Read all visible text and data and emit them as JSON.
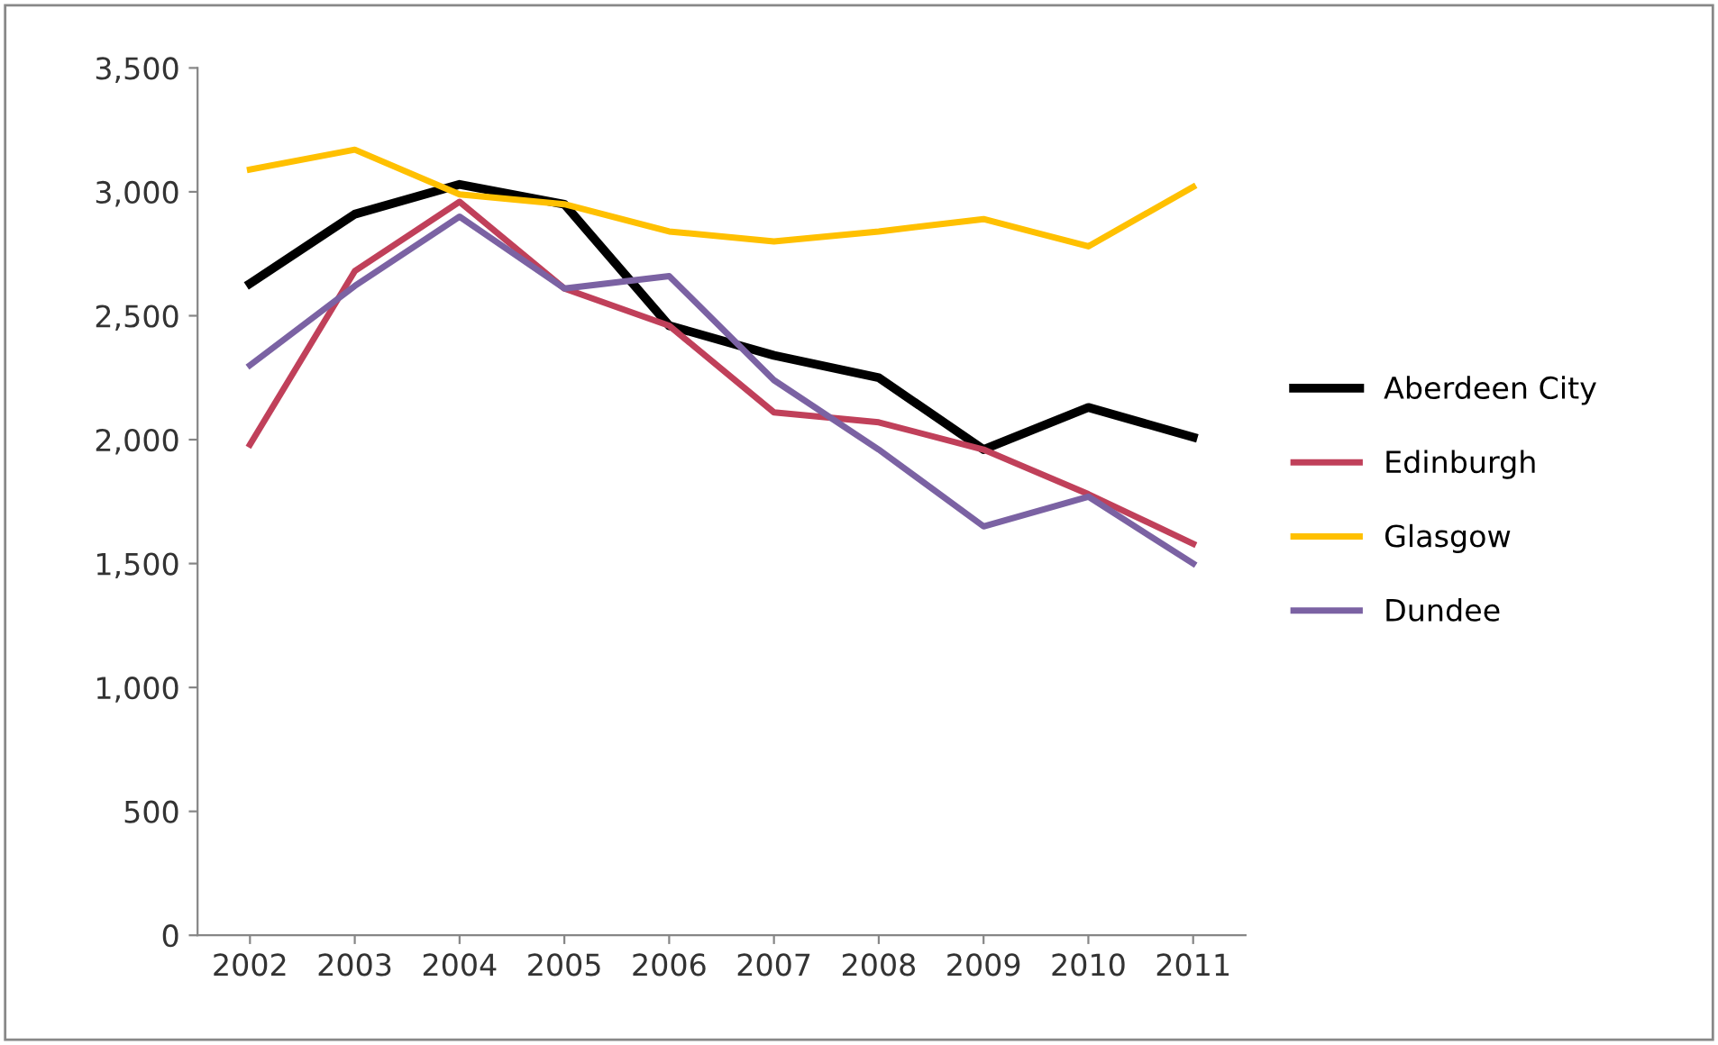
{
  "chart_data": {
    "type": "line",
    "categories": [
      "2002",
      "2003",
      "2004",
      "2005",
      "2006",
      "2007",
      "2008",
      "2009",
      "2010",
      "2011"
    ],
    "series": [
      {
        "name": "Aberdeen City",
        "color": "#000000",
        "values": [
          2630,
          2910,
          3030,
          2950,
          2460,
          2340,
          2250,
          1960,
          2130,
          2010
        ]
      },
      {
        "name": "Edinburgh",
        "color": "#c0405a",
        "values": [
          1980,
          2680,
          2960,
          2610,
          2460,
          2110,
          2070,
          1960,
          1780,
          1580
        ]
      },
      {
        "name": "Glasgow",
        "color": "#ffc000",
        "values": [
          3090,
          3170,
          2990,
          2950,
          2840,
          2800,
          2840,
          2890,
          2780,
          3020
        ]
      },
      {
        "name": "Dundee",
        "color": "#7b62a3",
        "values": [
          2300,
          2620,
          2900,
          2610,
          2660,
          2240,
          1960,
          1650,
          1770,
          1500
        ]
      }
    ],
    "ylim": [
      0,
      3500
    ],
    "yticks": [
      0,
      {
        "value": 500,
        "label": "500"
      },
      {
        "value": 1000,
        "label": "1,000"
      },
      {
        "value": 1500,
        "label": "1,500"
      },
      {
        "value": 2000,
        "label": "2,000"
      },
      {
        "value": 2500,
        "label": "2,500"
      },
      {
        "value": 3000,
        "label": "3,000"
      },
      {
        "value": 3500,
        "label": "3,500"
      }
    ],
    "grid": false,
    "legend": "right"
  }
}
